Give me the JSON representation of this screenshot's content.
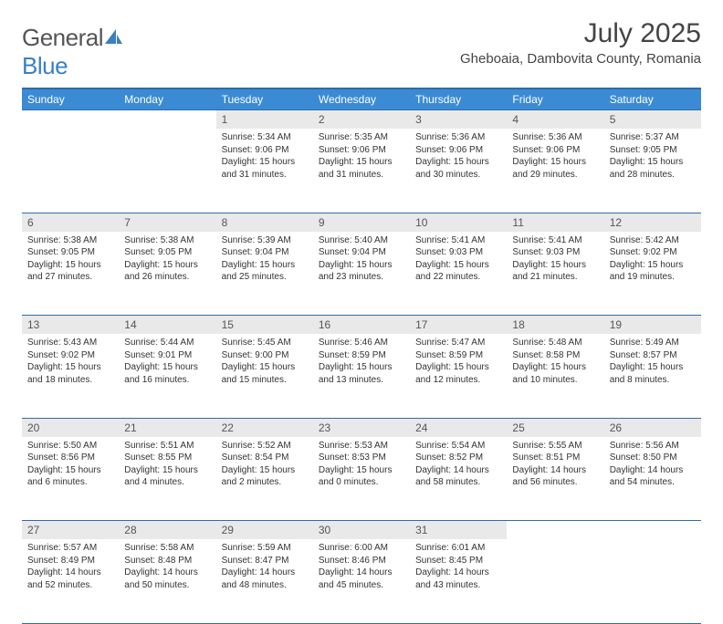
{
  "logo": {
    "part1": "General",
    "part2": "Blue"
  },
  "title": "July 2025",
  "location": "Gheboaia, Dambovita County, Romania",
  "colors": {
    "header_bg": "#3b8bd4",
    "header_border": "#2e6ca8",
    "daynum_bg": "#e9e9e9",
    "page_bg": "#ffffff"
  },
  "weekdays": [
    "Sunday",
    "Monday",
    "Tuesday",
    "Wednesday",
    "Thursday",
    "Friday",
    "Saturday"
  ],
  "weeks": [
    [
      null,
      null,
      {
        "n": "1",
        "sunrise": "5:34 AM",
        "sunset": "9:06 PM",
        "daylight": "15 hours and 31 minutes."
      },
      {
        "n": "2",
        "sunrise": "5:35 AM",
        "sunset": "9:06 PM",
        "daylight": "15 hours and 31 minutes."
      },
      {
        "n": "3",
        "sunrise": "5:36 AM",
        "sunset": "9:06 PM",
        "daylight": "15 hours and 30 minutes."
      },
      {
        "n": "4",
        "sunrise": "5:36 AM",
        "sunset": "9:06 PM",
        "daylight": "15 hours and 29 minutes."
      },
      {
        "n": "5",
        "sunrise": "5:37 AM",
        "sunset": "9:05 PM",
        "daylight": "15 hours and 28 minutes."
      }
    ],
    [
      {
        "n": "6",
        "sunrise": "5:38 AM",
        "sunset": "9:05 PM",
        "daylight": "15 hours and 27 minutes."
      },
      {
        "n": "7",
        "sunrise": "5:38 AM",
        "sunset": "9:05 PM",
        "daylight": "15 hours and 26 minutes."
      },
      {
        "n": "8",
        "sunrise": "5:39 AM",
        "sunset": "9:04 PM",
        "daylight": "15 hours and 25 minutes."
      },
      {
        "n": "9",
        "sunrise": "5:40 AM",
        "sunset": "9:04 PM",
        "daylight": "15 hours and 23 minutes."
      },
      {
        "n": "10",
        "sunrise": "5:41 AM",
        "sunset": "9:03 PM",
        "daylight": "15 hours and 22 minutes."
      },
      {
        "n": "11",
        "sunrise": "5:41 AM",
        "sunset": "9:03 PM",
        "daylight": "15 hours and 21 minutes."
      },
      {
        "n": "12",
        "sunrise": "5:42 AM",
        "sunset": "9:02 PM",
        "daylight": "15 hours and 19 minutes."
      }
    ],
    [
      {
        "n": "13",
        "sunrise": "5:43 AM",
        "sunset": "9:02 PM",
        "daylight": "15 hours and 18 minutes."
      },
      {
        "n": "14",
        "sunrise": "5:44 AM",
        "sunset": "9:01 PM",
        "daylight": "15 hours and 16 minutes."
      },
      {
        "n": "15",
        "sunrise": "5:45 AM",
        "sunset": "9:00 PM",
        "daylight": "15 hours and 15 minutes."
      },
      {
        "n": "16",
        "sunrise": "5:46 AM",
        "sunset": "8:59 PM",
        "daylight": "15 hours and 13 minutes."
      },
      {
        "n": "17",
        "sunrise": "5:47 AM",
        "sunset": "8:59 PM",
        "daylight": "15 hours and 12 minutes."
      },
      {
        "n": "18",
        "sunrise": "5:48 AM",
        "sunset": "8:58 PM",
        "daylight": "15 hours and 10 minutes."
      },
      {
        "n": "19",
        "sunrise": "5:49 AM",
        "sunset": "8:57 PM",
        "daylight": "15 hours and 8 minutes."
      }
    ],
    [
      {
        "n": "20",
        "sunrise": "5:50 AM",
        "sunset": "8:56 PM",
        "daylight": "15 hours and 6 minutes."
      },
      {
        "n": "21",
        "sunrise": "5:51 AM",
        "sunset": "8:55 PM",
        "daylight": "15 hours and 4 minutes."
      },
      {
        "n": "22",
        "sunrise": "5:52 AM",
        "sunset": "8:54 PM",
        "daylight": "15 hours and 2 minutes."
      },
      {
        "n": "23",
        "sunrise": "5:53 AM",
        "sunset": "8:53 PM",
        "daylight": "15 hours and 0 minutes."
      },
      {
        "n": "24",
        "sunrise": "5:54 AM",
        "sunset": "8:52 PM",
        "daylight": "14 hours and 58 minutes."
      },
      {
        "n": "25",
        "sunrise": "5:55 AM",
        "sunset": "8:51 PM",
        "daylight": "14 hours and 56 minutes."
      },
      {
        "n": "26",
        "sunrise": "5:56 AM",
        "sunset": "8:50 PM",
        "daylight": "14 hours and 54 minutes."
      }
    ],
    [
      {
        "n": "27",
        "sunrise": "5:57 AM",
        "sunset": "8:49 PM",
        "daylight": "14 hours and 52 minutes."
      },
      {
        "n": "28",
        "sunrise": "5:58 AM",
        "sunset": "8:48 PM",
        "daylight": "14 hours and 50 minutes."
      },
      {
        "n": "29",
        "sunrise": "5:59 AM",
        "sunset": "8:47 PM",
        "daylight": "14 hours and 48 minutes."
      },
      {
        "n": "30",
        "sunrise": "6:00 AM",
        "sunset": "8:46 PM",
        "daylight": "14 hours and 45 minutes."
      },
      {
        "n": "31",
        "sunrise": "6:01 AM",
        "sunset": "8:45 PM",
        "daylight": "14 hours and 43 minutes."
      },
      null,
      null
    ]
  ],
  "labels": {
    "sunrise_prefix": "Sunrise: ",
    "sunset_prefix": "Sunset: ",
    "daylight_prefix": "Daylight: "
  }
}
